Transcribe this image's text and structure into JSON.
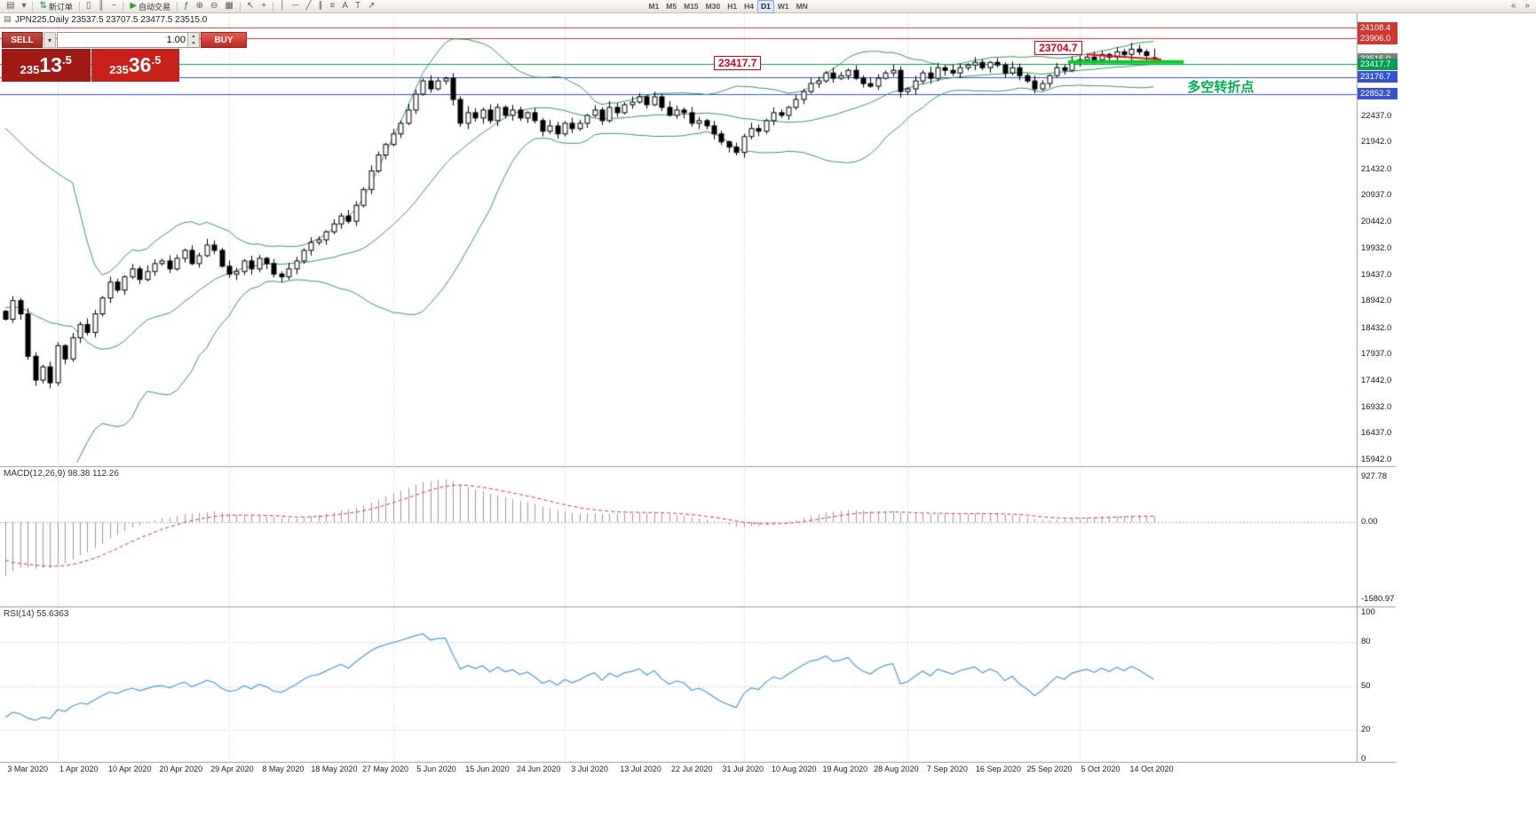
{
  "window": {
    "toolbar": [
      {
        "name": "chart-window",
        "icon": "chart-window-icon"
      },
      {
        "name": "chart-list-dropdown",
        "icon": "chevron-down-icon"
      },
      {
        "type": "separator"
      },
      {
        "name": "new-order",
        "icon": "new-order-icon",
        "label": "新订单"
      },
      {
        "type": "separator"
      },
      {
        "name": "chart-candlesticks",
        "icon": "candlestick-chart-icon"
      },
      {
        "name": "chart-bars",
        "icon": "bar-chart-icon"
      },
      {
        "name": "chart-line",
        "icon": "line-chart-icon"
      },
      {
        "type": "separator"
      },
      {
        "name": "autotrading",
        "icon": "autotrading-play-icon",
        "label": "自动交易"
      },
      {
        "type": "separator"
      },
      {
        "name": "indicators",
        "icon": "indicators-icon"
      },
      {
        "name": "zoom-in",
        "icon": "zoom-in-icon"
      },
      {
        "name": "zoom-out",
        "icon": "zoom-out-icon"
      },
      {
        "name": "tile-windows",
        "icon": "tile-windows-icon"
      },
      {
        "type": "separator"
      },
      {
        "name": "cursor",
        "icon": "cursor-icon"
      },
      {
        "name": "crosshair",
        "icon": "crosshair-icon"
      },
      {
        "type": "separator"
      },
      {
        "name": "vertical-line",
        "icon": "vertical-line-icon"
      },
      {
        "name": "horizontal-line",
        "icon": "horizontal-line-icon"
      },
      {
        "name": "trendline",
        "icon": "trendline-icon"
      },
      {
        "name": "equidistant-channel",
        "icon": "channel-icon"
      },
      {
        "name": "fibonacci-retracement",
        "icon": "fibonacci-icon"
      },
      {
        "name": "text",
        "icon": "text-icon"
      },
      {
        "name": "text-label",
        "icon": "label-icon"
      },
      {
        "name": "arrow-objects",
        "icon": "arrows-icon"
      }
    ],
    "timeframes": [
      "M1",
      "M5",
      "M15",
      "M30",
      "H1",
      "H4",
      "D1",
      "W1",
      "MN"
    ],
    "active_timeframe": "D1",
    "toolbar_right": [
      {
        "name": "toolbar-scroll-left",
        "icon": "chevrons-left-icon"
      },
      {
        "name": "toolbar-scroll-right",
        "icon": "chevrons-right-icon"
      }
    ]
  },
  "trade_panel": {
    "sell_label": "SELL",
    "buy_label": "BUY",
    "volume": "1.00",
    "sell_price": {
      "prefix": "235",
      "big": "13",
      "suffix": ".5",
      "full": "23513.5"
    },
    "buy_price": {
      "prefix": "235",
      "big": "36",
      "suffix": ".5",
      "full": "23536.5"
    }
  },
  "chart": {
    "title": "JPN225,Daily 23537.5 23707.5 23477.5 23515.0",
    "y_axis": {
      "ticks": [
        "22437.0",
        "21942.0",
        "21432.0",
        "20937.0",
        "20442.0",
        "19932.0",
        "19437.0",
        "18942.0",
        "18432.0",
        "17937.0",
        "17442.0",
        "16932.0",
        "16437.0",
        "15942.0"
      ],
      "tags": [
        {
          "value": "24108.4",
          "color": "#d03732"
        },
        {
          "value": "23906.0",
          "color": "#d03732"
        },
        {
          "value": "23515.0",
          "color": "#7f7f7f"
        },
        {
          "value": "23417.7",
          "color": "#00a050"
        },
        {
          "value": "23176.7",
          "color": "#3653d6"
        },
        {
          "value": "22852.2",
          "color": "#3653d6"
        }
      ]
    },
    "x_axis": {
      "labels": [
        "3 Mar 2020",
        "1 Apr 2020",
        "10 Apr 2020",
        "20 Apr 2020",
        "29 Apr 2020",
        "8 May 2020",
        "18 May 2020",
        "27 May 2020",
        "5 Jun 2020",
        "15 Jun 2020",
        "24 Jun 2020",
        "3 Jul 2020",
        "13 Jul 2020",
        "22 Jul 2020",
        "31 Jul 2020",
        "10 Aug 2020",
        "19 Aug 2020",
        "28 Aug 2020",
        "7 Sep 2020",
        "16 Sep 2020",
        "25 Sep 2020",
        "5 Oct 2020",
        "14 Oct 2020"
      ]
    },
    "hlines": [
      {
        "price": 24108.4,
        "color": "#d03732"
      },
      {
        "price": 23906.0,
        "color": "#d03732"
      },
      {
        "price": 23417.7,
        "color": "#00a050"
      },
      {
        "price": 23176.7,
        "color": "#3653d6"
      },
      {
        "price": 22852.2,
        "color": "#3653d6"
      }
    ],
    "annotations": {
      "level_label_1": {
        "text": "23417.7",
        "idx": 95,
        "price": 23417.7
      },
      "level_label_2": {
        "text": "23704.7",
        "idx": 138,
        "price": 23704.7
      },
      "turning_point_label": {
        "text": "多空转折点",
        "idx": 158.5,
        "price": 23020,
        "color": "#00b050"
      },
      "support_segment": {
        "idx1": 142.5,
        "idx2": 158,
        "price1": 23460,
        "price2": 23460,
        "color": "#00d020",
        "width": 4
      },
      "resistance_segment": {
        "idx1": 145,
        "idx2": 155,
        "price1": 23600,
        "price2": 23505,
        "color": "#ee1111",
        "width": 2
      }
    },
    "macd": {
      "label": "MACD(12,26,9) 98.38 112.26",
      "ticks": [
        "927.78",
        "0.00",
        "-1580.97"
      ]
    },
    "rsi": {
      "label": "RSI(14) 55.6363",
      "ticks": [
        "100",
        "80",
        "50",
        "20",
        "0"
      ],
      "levels": [
        80,
        50,
        20
      ]
    }
  },
  "chart_data": {
    "type": "candlestick",
    "symbol": "JPN225",
    "period": "Daily",
    "ohlc_current": {
      "open": 23537.5,
      "high": 23707.5,
      "low": 23477.5,
      "close": 23515.0
    },
    "ylim": [
      15942.0,
      24108.4
    ],
    "closes": [
      18600,
      18950,
      18700,
      17900,
      17450,
      17700,
      17400,
      18100,
      17850,
      18250,
      18500,
      18350,
      18700,
      19000,
      19300,
      19150,
      19400,
      19550,
      19350,
      19500,
      19650,
      19700,
      19550,
      19750,
      19900,
      19650,
      19800,
      20000,
      19900,
      19600,
      19450,
      19500,
      19700,
      19550,
      19750,
      19650,
      19450,
      19400,
      19550,
      19700,
      19900,
      20050,
      20100,
      20250,
      20400,
      20550,
      20450,
      20750,
      21050,
      21400,
      21700,
      21900,
      22100,
      22300,
      22550,
      22850,
      23100,
      22950,
      23100,
      23150,
      22750,
      22300,
      22500,
      22400,
      22550,
      22350,
      22600,
      22450,
      22550,
      22400,
      22500,
      22350,
      22150,
      22250,
      22100,
      22300,
      22200,
      22300,
      22450,
      22550,
      22350,
      22600,
      22500,
      22650,
      22700,
      22800,
      22650,
      22800,
      22600,
      22450,
      22550,
      22500,
      22300,
      22350,
      22250,
      22100,
      21950,
      21850,
      21750,
      22050,
      22200,
      22150,
      22350,
      22500,
      22450,
      22600,
      22750,
      22900,
      23050,
      23100,
      23250,
      23150,
      23200,
      23300,
      23150,
      23050,
      23000,
      23150,
      23250,
      23300,
      22900,
      22950,
      23100,
      23250,
      23150,
      23350,
      23300,
      23250,
      23350,
      23400,
      23450,
      23350,
      23450,
      23400,
      23250,
      23350,
      23200,
      23100,
      22950,
      23050,
      23200,
      23350,
      23300,
      23450,
      23500,
      23550,
      23500,
      23600,
      23550,
      23650,
      23600,
      23700,
      23650,
      23580,
      23515
    ],
    "month_start_indices": [
      7,
      30,
      52,
      75,
      99,
      121,
      144
    ],
    "indicators": [
      {
        "name": "Bollinger Bands",
        "overlay": true
      },
      {
        "name": "MACD",
        "params": [
          12,
          26,
          9
        ],
        "values": [
          98.38,
          112.26
        ]
      },
      {
        "name": "RSI",
        "params": [
          14
        ],
        "value": 55.6363
      }
    ],
    "colors": {
      "bollinger": "#2f9e57",
      "rsi_line": "#4a9ae8",
      "macd_signal": "#e03030",
      "macd_histogram": "#9b9b9b",
      "up_candle": "#ffffff",
      "down_candle": "#000000",
      "candle_outline": "#000000"
    }
  }
}
